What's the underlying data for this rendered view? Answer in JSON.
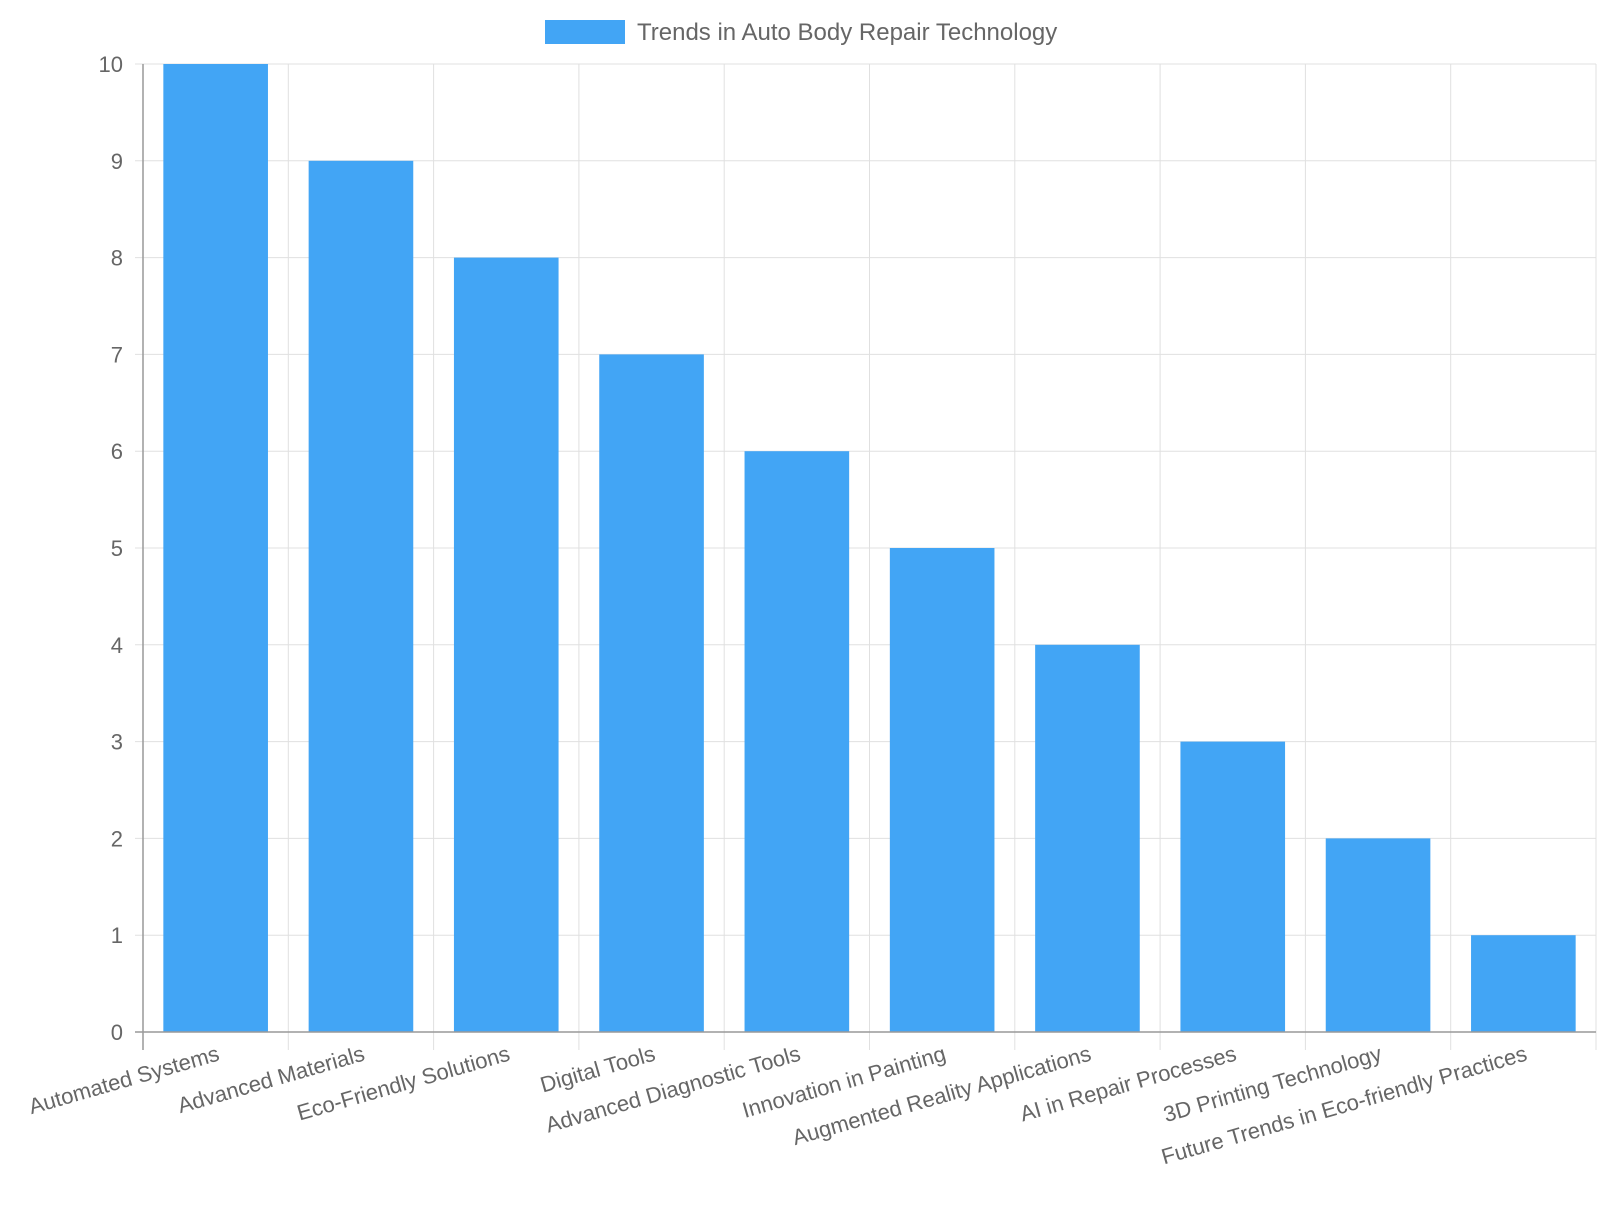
{
  "chart_data": {
    "type": "bar",
    "categories": [
      "Automated Systems",
      "Advanced Materials",
      "Eco-Friendly Solutions",
      "Digital Tools",
      "Advanced Diagnostic Tools",
      "Innovation in Painting",
      "Augmented Reality Applications",
      "AI in Repair Processes",
      "3D Printing Technology",
      "Future Trends in Eco-friendly Practices"
    ],
    "series": [
      {
        "name": "Trends in Auto Body Repair Technology",
        "values": [
          10,
          9,
          8,
          7,
          6,
          5,
          4,
          3,
          2,
          1
        ],
        "color": "#42a5f5"
      }
    ],
    "ylim": [
      0,
      10
    ],
    "yticks": [
      "0",
      "1",
      "2",
      "3",
      "4",
      "5",
      "6",
      "7",
      "8",
      "9",
      "10"
    ],
    "grid": true,
    "legend_position": "top"
  }
}
